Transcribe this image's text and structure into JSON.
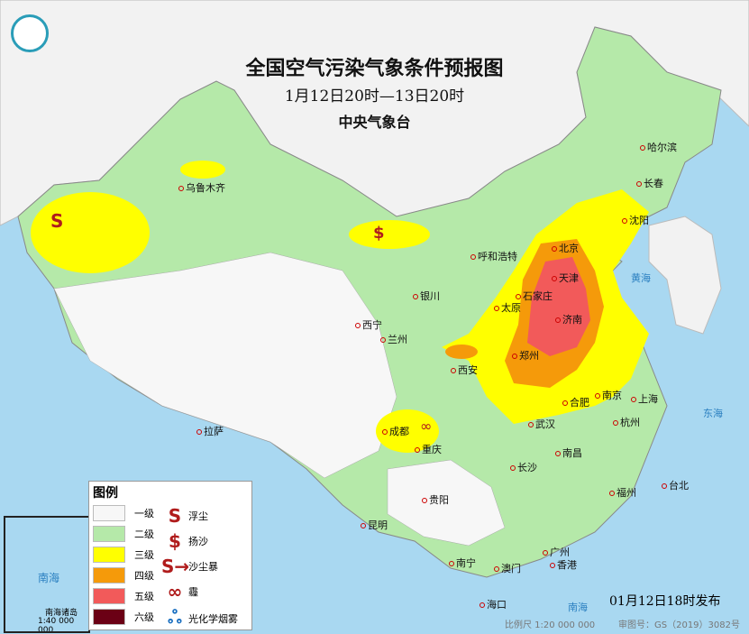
{
  "title": "全国空气污染气象条件预报图",
  "subtitle": "1月12日20时—13日20时",
  "issuer": "中央气象台",
  "logo": "中央气象台 logo",
  "legend": {
    "title": "图例",
    "levels": [
      {
        "label": "一级",
        "color": "#f7f7f7"
      },
      {
        "label": "二级",
        "color": "#b5e9a9"
      },
      {
        "label": "三级",
        "color": "#ffff00"
      },
      {
        "label": "四级",
        "color": "#f59a0a"
      },
      {
        "label": "五级",
        "color": "#f25a5a"
      },
      {
        "label": "六级",
        "color": "#6b0015"
      }
    ],
    "symbols": [
      {
        "glyph": "S",
        "label": "浮尘",
        "icon": "floating-dust-icon"
      },
      {
        "glyph": "$",
        "label": "扬沙",
        "icon": "blowing-sand-icon"
      },
      {
        "glyph": "S→",
        "label": "沙尘暴",
        "icon": "sandstorm-icon"
      },
      {
        "glyph": "∞",
        "label": "霾",
        "icon": "haze-icon"
      },
      {
        "glyph": "ஃ",
        "label": "光化学烟雾",
        "icon": "photochemical-smog-icon"
      }
    ]
  },
  "cities": [
    "乌鲁木齐",
    "哈尔滨",
    "长春",
    "沈阳",
    "北京",
    "天津",
    "呼和浩特",
    "银川",
    "太原",
    "石家庄",
    "济南",
    "西宁",
    "兰州",
    "西安",
    "郑州",
    "合肥",
    "南京",
    "上海",
    "杭州",
    "武汉",
    "成都",
    "重庆",
    "拉萨",
    "南昌",
    "长沙",
    "贵阳",
    "昆明",
    "福州",
    "台北",
    "南宁",
    "广州",
    "香港",
    "澳门",
    "海口"
  ],
  "seas": [
    "黄海",
    "东海",
    "南海"
  ],
  "inset": {
    "label": "南海",
    "islands": "南海诸岛",
    "scale": "1:40 000 000"
  },
  "issued": "01月12日18时发布",
  "scale": "比例尺 1:20 000 000",
  "map_number": "审图号：GS（2019）3082号"
}
